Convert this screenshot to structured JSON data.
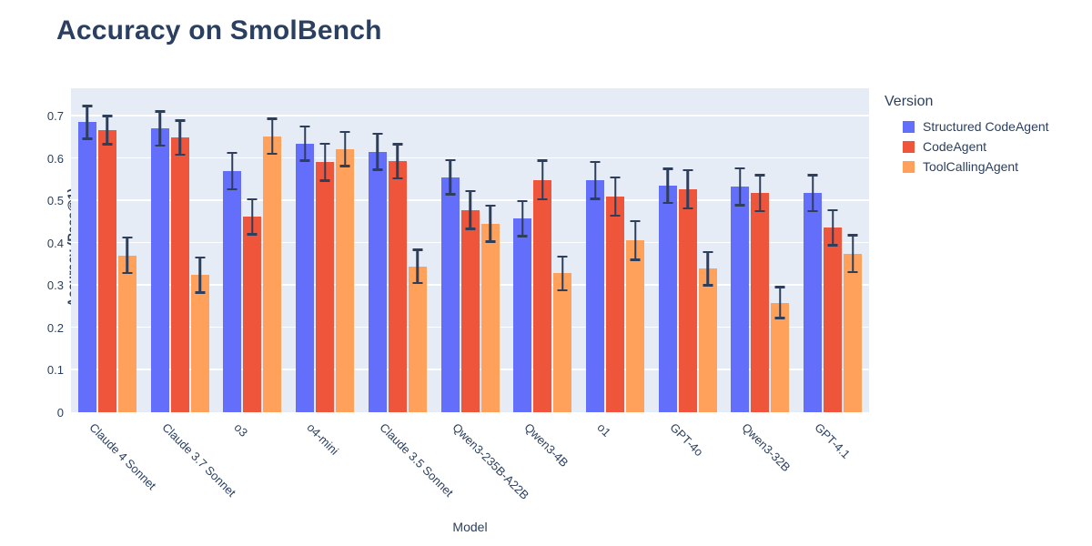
{
  "title": "Accuracy on SmolBench",
  "legend": {
    "title": "Version",
    "position": "right"
  },
  "colors": {
    "structured_codeagent": "#636EFA",
    "codeagent": "#EF553B",
    "toolcallingagent": "#FFA15A",
    "error_bar": "#2e3f5c",
    "text": "#2a3f5f",
    "plot_background": "#E5ECF6",
    "gridline": "#ffffff"
  },
  "chart_data": {
    "type": "bar",
    "title": "Accuracy on SmolBench",
    "xlabel": "Model",
    "ylabel": "Accuracy (Pass@1)",
    "ylim": [
      0,
      0.765
    ],
    "ytick_values": [
      0,
      0.1,
      0.2,
      0.3,
      0.4,
      0.5,
      0.6,
      0.7
    ],
    "ytick_labels": [
      "0",
      "0.1",
      "0.2",
      "0.3",
      "0.4",
      "0.5",
      "0.6",
      "0.7"
    ],
    "grid": true,
    "legend_title": "Version",
    "legend_position": "right",
    "xtick_angle_deg": 45,
    "categories": [
      "Claude 4 Sonnet",
      "Claude 3.7 Sonnet",
      "o3",
      "o4-mini",
      "Claude 3.5 Sonnet",
      "Qwen3-235B-A22B",
      "Qwen3-4B",
      "o1",
      "GPT-4o",
      "Qwen3-32B",
      "GPT-4.1"
    ],
    "series": [
      {
        "name": "Structured CodeAgent",
        "color": "#636EFA",
        "values": [
          0.685,
          0.67,
          0.57,
          0.635,
          0.616,
          0.555,
          0.458,
          0.548,
          0.535,
          0.533,
          0.518
        ],
        "error_bars": [
          0.041,
          0.043,
          0.046,
          0.043,
          0.045,
          0.043,
          0.044,
          0.046,
          0.043,
          0.046,
          0.045
        ]
      },
      {
        "name": "CodeAgent",
        "color": "#EF553B",
        "values": [
          0.667,
          0.649,
          0.462,
          0.591,
          0.593,
          0.478,
          0.549,
          0.51,
          0.527,
          0.518,
          0.436
        ],
        "error_bars": [
          0.036,
          0.043,
          0.044,
          0.046,
          0.043,
          0.047,
          0.048,
          0.048,
          0.048,
          0.045,
          0.044
        ]
      },
      {
        "name": "ToolCallingAgent",
        "color": "#FFA15A",
        "values": [
          0.371,
          0.324,
          0.652,
          0.622,
          0.345,
          0.446,
          0.328,
          0.406,
          0.339,
          0.259,
          0.375
        ],
        "error_bars": [
          0.045,
          0.044,
          0.044,
          0.043,
          0.042,
          0.045,
          0.042,
          0.048,
          0.042,
          0.039,
          0.046
        ]
      }
    ]
  }
}
